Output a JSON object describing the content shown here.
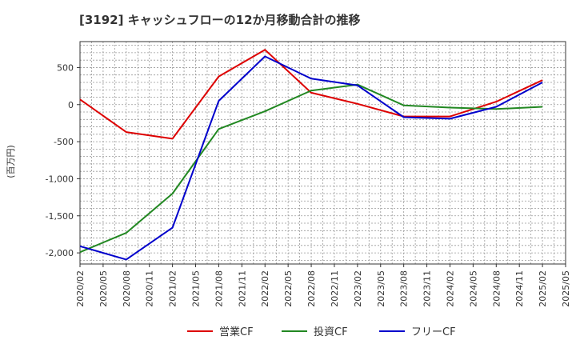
{
  "chart_data": {
    "type": "line",
    "title": "[3192]  キャッシュフローの12か月移動合計の推移",
    "ylabel": "(百万円)",
    "xlabel": "",
    "ylim": [
      -2150,
      850
    ],
    "yticks": [
      500,
      0,
      -500,
      -1000,
      -1500,
      -2000
    ],
    "ytick_labels": [
      "500",
      "0",
      "-500",
      "-1,000",
      "-1,500",
      "-2,000"
    ],
    "x_labels": [
      "2020/02",
      "2020/05",
      "2020/08",
      "2020/11",
      "2021/02",
      "2021/05",
      "2021/08",
      "2021/11",
      "2022/02",
      "2022/05",
      "2022/08",
      "2022/11",
      "2023/02",
      "2023/05",
      "2023/08",
      "2023/11",
      "2024/02",
      "2024/05",
      "2024/08",
      "2024/11",
      "2025/02",
      "2025/05"
    ],
    "grid": true,
    "legend_position": "bottom-center",
    "series": [
      {
        "name": "営業CF",
        "color": "#dd0000",
        "x_index": [
          0,
          2,
          4,
          6,
          8,
          10,
          12,
          14,
          16,
          18,
          20
        ],
        "values": [
          70,
          -370,
          -460,
          380,
          740,
          160,
          10,
          -160,
          -160,
          40,
          330
        ]
      },
      {
        "name": "投資CF",
        "color": "#228822",
        "x_index": [
          0,
          2,
          4,
          6,
          8,
          10,
          12,
          14,
          16,
          18,
          20
        ],
        "values": [
          -1990,
          -1730,
          -1200,
          -330,
          -90,
          190,
          270,
          -10,
          -40,
          -60,
          -30
        ]
      },
      {
        "name": "フリーCF",
        "color": "#0000cc",
        "x_index": [
          0,
          2,
          4,
          6,
          8,
          10,
          12,
          14,
          16,
          18,
          20
        ],
        "values": [
          -1910,
          -2090,
          -1660,
          50,
          650,
          350,
          260,
          -170,
          -190,
          -30,
          300
        ]
      }
    ]
  }
}
